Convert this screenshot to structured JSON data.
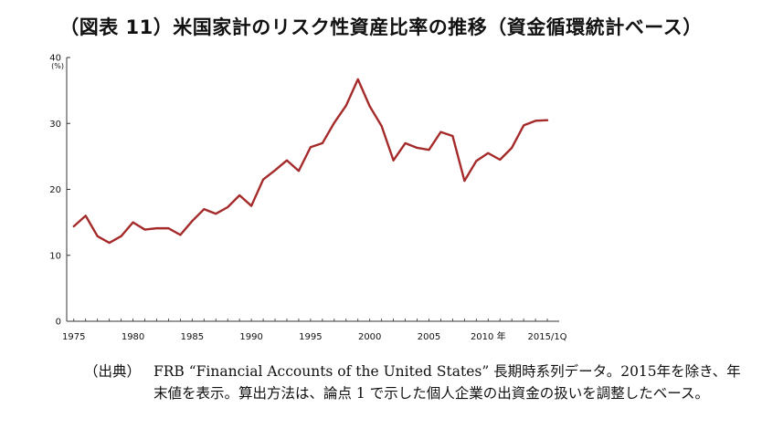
{
  "title": "（図表 11）米国家計のリスク性資産比率の推移（資金循環統計ベース）",
  "source_label": "（出典）",
  "source_text": "FRB “Financial Accounts of the United States” 長期時系列データ。2015年を除き、年末値を表示。算出方法は、論点 1 で示した個人企業の出資金の扱いを調整したベース。",
  "chart_data": {
    "type": "line",
    "title": "（図表 11）米国家計のリスク性資産比率の推移（資金循環統計ベース）",
    "ylabel": "(%)",
    "ylim": [
      0,
      40
    ],
    "yticks": [
      0,
      10,
      20,
      30,
      40
    ],
    "x_tick_labels": [
      "1975",
      "1980",
      "1985",
      "1990",
      "1995",
      "2000",
      "2005",
      "2010 年",
      "2015/1Q"
    ],
    "x_tick_positions": [
      1975,
      1980,
      1985,
      1990,
      1995,
      2000,
      2005,
      2010,
      2015
    ],
    "x": [
      1975,
      1976,
      1977,
      1978,
      1979,
      1980,
      1981,
      1982,
      1983,
      1984,
      1985,
      1986,
      1987,
      1988,
      1989,
      1990,
      1991,
      1992,
      1993,
      1994,
      1995,
      1996,
      1997,
      1998,
      1999,
      2000,
      2001,
      2002,
      2003,
      2004,
      2005,
      2006,
      2007,
      2008,
      2009,
      2010,
      2011,
      2012,
      2013,
      2014,
      2015
    ],
    "series": [
      {
        "color": "#a52a2a",
        "values": [
          14.4,
          16.0,
          12.9,
          11.9,
          12.9,
          15.0,
          13.9,
          14.1,
          14.1,
          13.1,
          15.2,
          17.0,
          16.3,
          17.3,
          19.1,
          17.5,
          21.5,
          22.9,
          24.4,
          22.8,
          26.4,
          27.0,
          30.1,
          32.7,
          36.7,
          32.6,
          29.6,
          24.4,
          27.0,
          26.3,
          26.0,
          28.7,
          28.1,
          21.3,
          24.3,
          25.5,
          24.5,
          26.3,
          29.7,
          30.4,
          30.5
        ]
      }
    ],
    "grid": false,
    "legend": "none"
  }
}
